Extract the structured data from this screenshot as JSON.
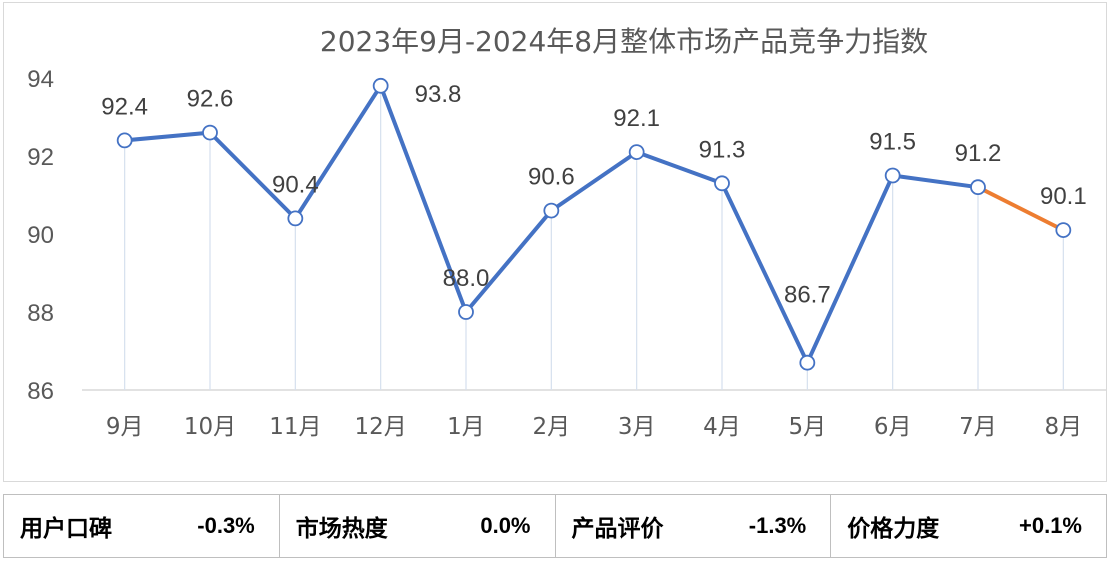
{
  "chart_data": {
    "type": "line",
    "title": "2023年9月-2024年8月整体市场产品竞争力指数",
    "categories": [
      "9月",
      "10月",
      "11月",
      "12月",
      "1月",
      "2月",
      "3月",
      "4月",
      "5月",
      "6月",
      "7月",
      "8月"
    ],
    "series": [
      {
        "values": [
          92.4,
          92.6,
          90.4,
          93.8,
          88.0,
          90.6,
          92.1,
          91.3,
          86.7,
          91.5,
          91.2,
          90.1
        ],
        "data_labels": [
          "92.4",
          "92.6",
          "90.4",
          "93.8",
          "88.0",
          "90.6",
          "92.1",
          "91.3",
          "86.7",
          "91.5",
          "91.2",
          "90.1"
        ]
      }
    ],
    "ylim": [
      86,
      94
    ],
    "yticks": [
      "86",
      "88",
      "90",
      "92",
      "94"
    ],
    "line_color": "#4472c4",
    "last_segment_color": "#ed7d31",
    "drop_line_color": "#d6e0ee",
    "axis_color": "#d9d9d9",
    "grid": false,
    "legend": "none"
  },
  "metrics": [
    {
      "label": "用户口碑",
      "value": "-0.3%"
    },
    {
      "label": "市场热度",
      "value": "0.0%"
    },
    {
      "label": "产品评价",
      "value": "-1.3%"
    },
    {
      "label": "价格力度",
      "value": "+0.1%"
    }
  ]
}
